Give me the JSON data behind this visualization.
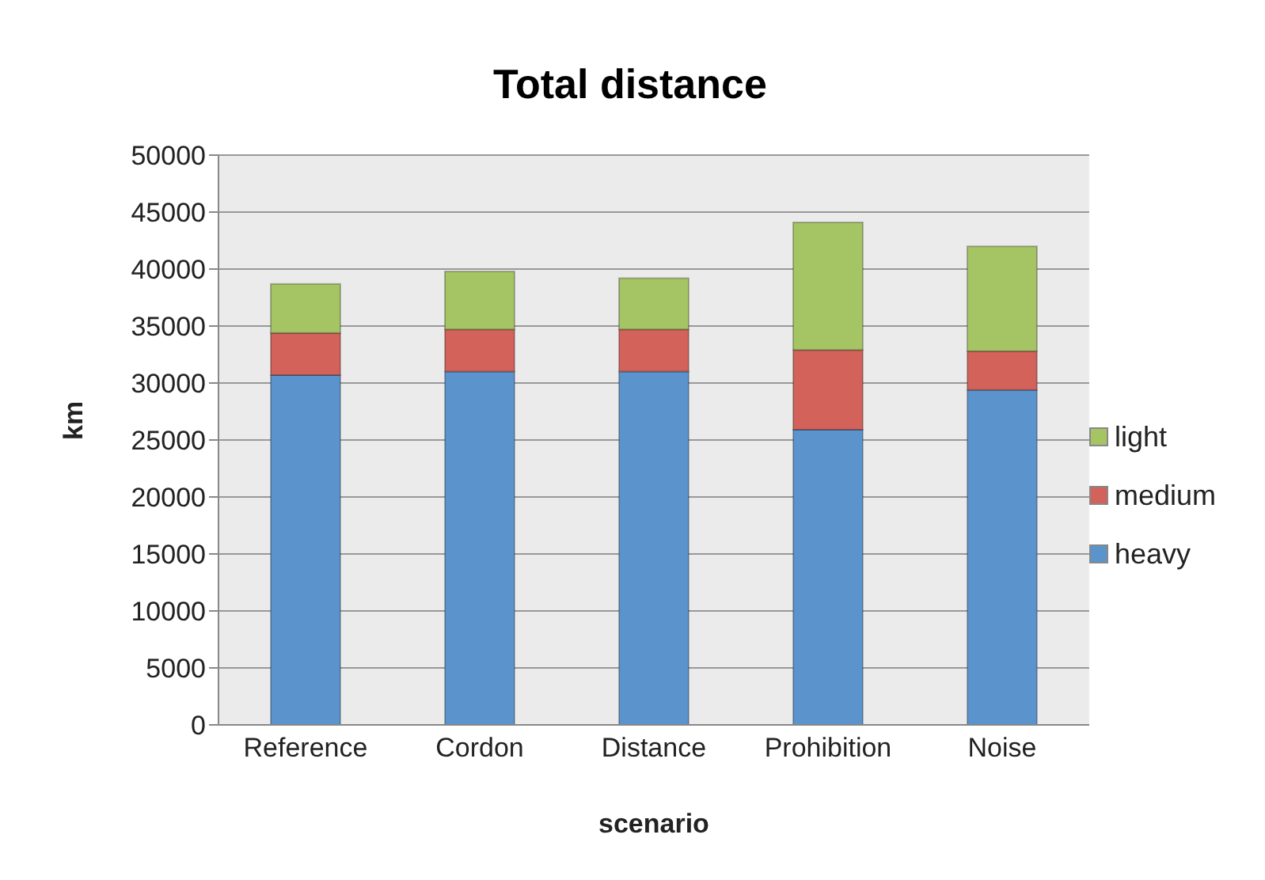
{
  "chart_data": {
    "type": "bar",
    "title": "Total distance",
    "xlabel": "scenario",
    "ylabel": "km",
    "categories": [
      "Reference",
      "Cordon",
      "Distance",
      "Prohibition",
      "Noise"
    ],
    "stacked": true,
    "series": [
      {
        "name": "heavy",
        "color": "#5b93cd",
        "values": [
          30700,
          31000,
          31000,
          25900,
          29400
        ]
      },
      {
        "name": "medium",
        "color": "#d2625a",
        "values": [
          3700,
          3700,
          3700,
          7000,
          3400
        ]
      },
      {
        "name": "light",
        "color": "#a5c464",
        "values": [
          4300,
          5100,
          4500,
          11200,
          9200
        ]
      }
    ],
    "ylim": [
      0,
      50000
    ],
    "yticks": [
      0,
      5000,
      10000,
      15000,
      20000,
      25000,
      30000,
      35000,
      40000,
      45000,
      50000
    ],
    "grid": "y",
    "legend": "right"
  }
}
